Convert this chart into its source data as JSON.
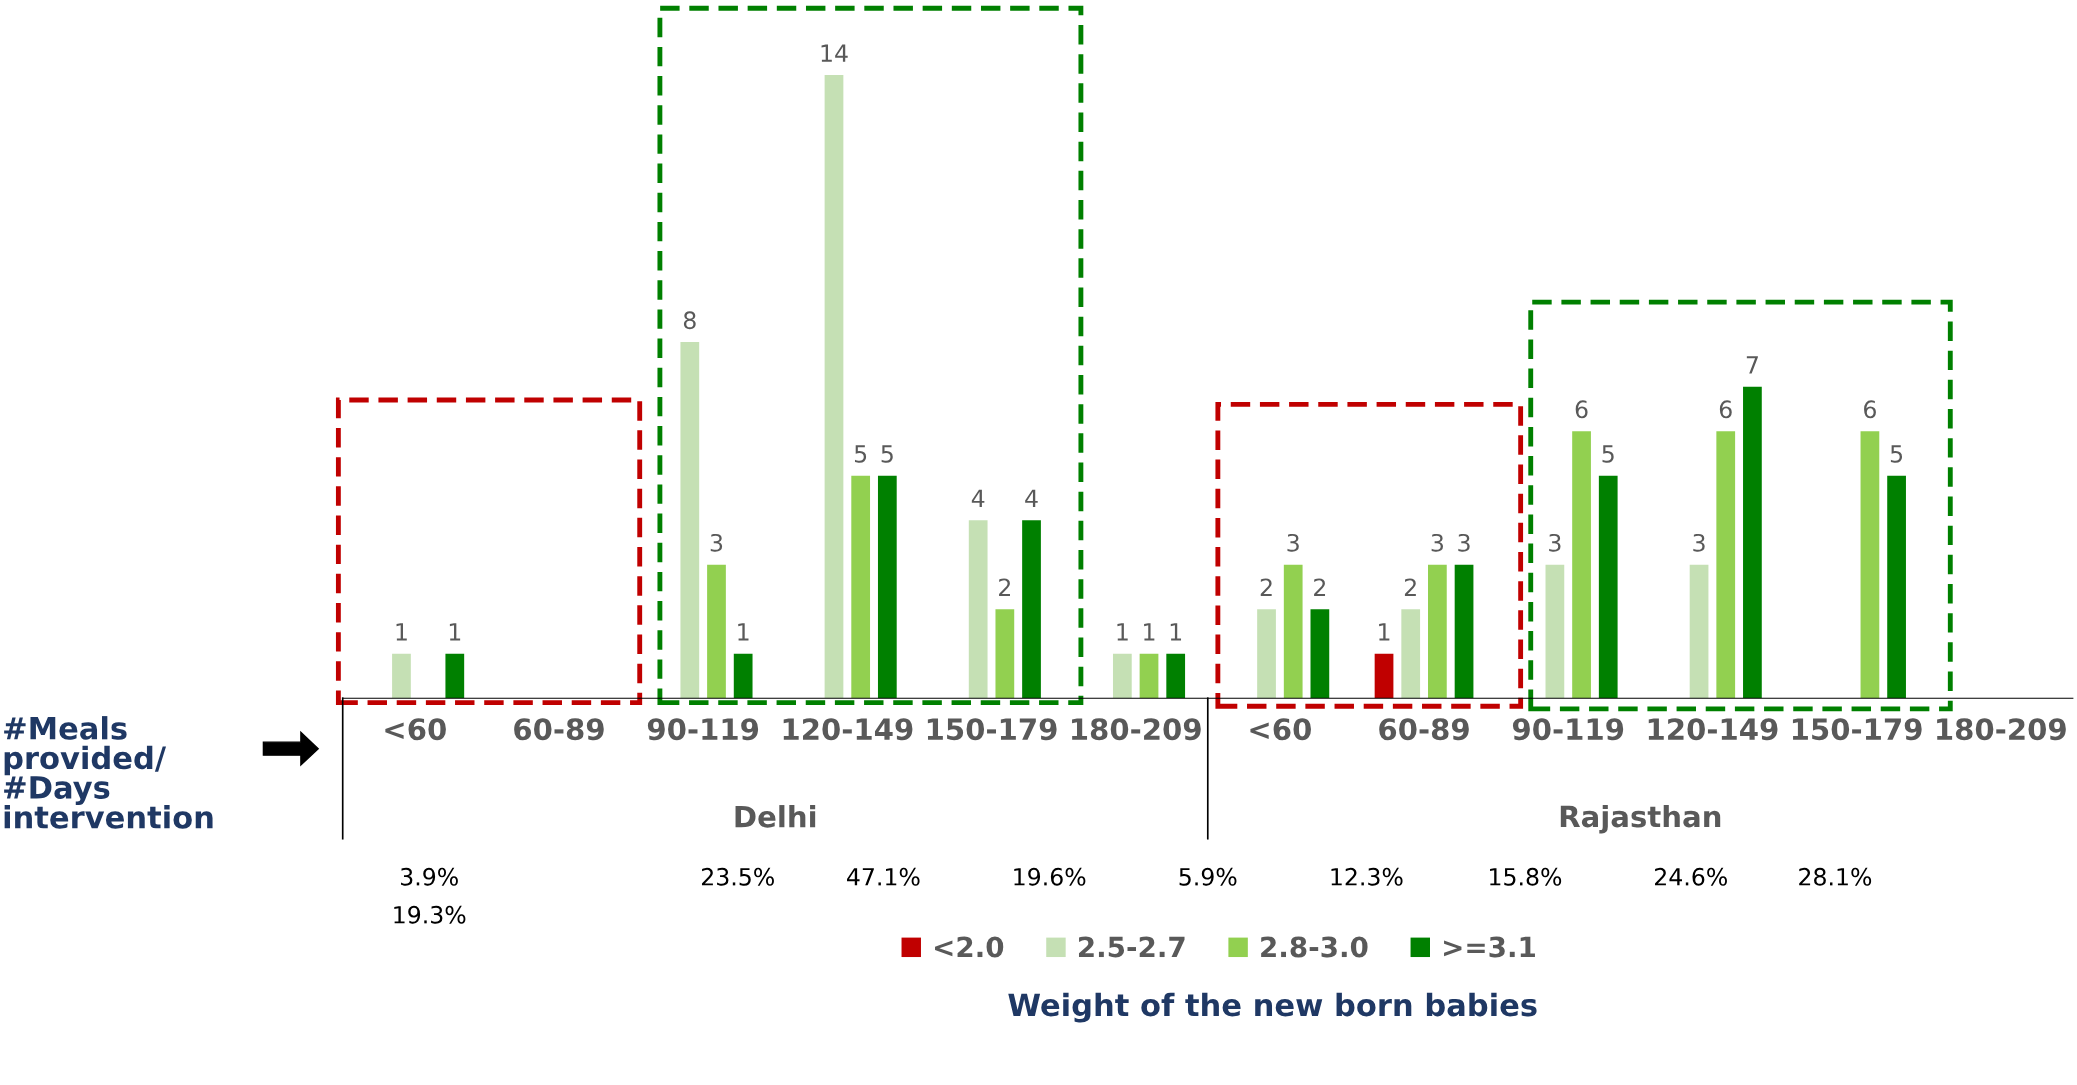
{
  "chart_data": {
    "type": "bar",
    "categories": [
      "<60",
      "60-89",
      "90-119",
      "120-149",
      "150-179",
      "180-209",
      "<60",
      "60-89",
      "90-119",
      "120-149",
      "150-179",
      "180-209"
    ],
    "series": [
      {
        "name": "<2.0",
        "color": "#c00000",
        "values": [
          null,
          null,
          null,
          null,
          null,
          null,
          null,
          1,
          null,
          null,
          null,
          null
        ]
      },
      {
        "name": "2.5-2.7",
        "color": "#c5e0b4",
        "values": [
          1,
          null,
          8,
          14,
          4,
          1,
          2,
          2,
          3,
          3,
          null,
          null
        ]
      },
      {
        "name": "2.8-3.0",
        "color": "#92d050",
        "values": [
          null,
          null,
          3,
          5,
          2,
          1,
          3,
          3,
          6,
          6,
          6,
          null
        ]
      },
      {
        "name": ">=3.1",
        "color": "#008000",
        "values": [
          1,
          null,
          1,
          5,
          4,
          1,
          2,
          3,
          5,
          7,
          5,
          null
        ]
      }
    ],
    "data_labels": true,
    "legend": "bottom",
    "legend_title": "Weight of the new born babies",
    "grid": false,
    "annotations": [
      "#Meals provided/ #Days intervention",
      "Delhi",
      "Rajasthan",
      "3.9%",
      "19.3%",
      "23.5%",
      "47.1%",
      "19.6%",
      "5.9%",
      "12.3%",
      "15.8%",
      "24.6%",
      "28.1%"
    ]
  }
}
